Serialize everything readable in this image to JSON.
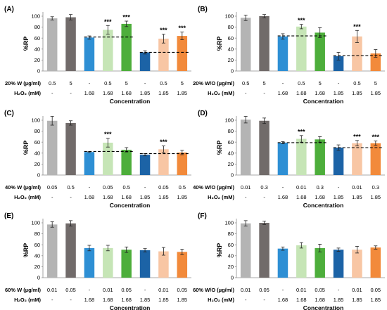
{
  "chart_data": [
    {
      "type": "bar",
      "panel_label": "(A)",
      "ylabel": "%RP",
      "xlabel": "Concentration",
      "ylim": [
        0,
        100
      ],
      "yticks": [
        "0",
        "20",
        "40",
        "60",
        "80",
        "100"
      ],
      "row1_label": "20% W (µg/ml)",
      "row2_label": "H₂O₂ (mM)",
      "row1": [
        "0.5",
        "5",
        "-",
        "0.5",
        "5",
        "-",
        "0.5",
        "5"
      ],
      "row2": [
        "-",
        "-",
        "1.68",
        "1.68",
        "1.68",
        "1.85",
        "1.85",
        "1.85"
      ],
      "values": [
        96,
        98,
        61,
        75,
        86,
        34,
        59,
        64
      ],
      "errors": [
        3,
        5,
        3,
        8,
        5,
        3,
        8,
        7
      ],
      "significance": [
        "",
        "",
        "",
        "***",
        "***",
        "",
        "***",
        "***"
      ],
      "reference_lines": [
        {
          "from": 2,
          "to": 4,
          "y": 62
        },
        {
          "from": 5,
          "to": 7,
          "y": 34
        }
      ],
      "colors": [
        "#b4b4b4",
        "#716b6a",
        "#2e8fd4",
        "#c6e5b6",
        "#4dae3b",
        "#1c63a6",
        "#f8c6a4",
        "#f28a3b"
      ]
    },
    {
      "type": "bar",
      "panel_label": "(B)",
      "ylabel": "%RP",
      "xlabel": "Concentration",
      "ylim": [
        0,
        100
      ],
      "yticks": [
        "0",
        "20",
        "40",
        "60",
        "80",
        "100"
      ],
      "row1_label": "20% W/O (µg/ml)",
      "row2_label": "H₂O₂ (mM)",
      "row1": [
        "0.5",
        "5",
        "-",
        "0.5",
        "5",
        "-",
        "0.5",
        "5"
      ],
      "row2": [
        "-",
        "-",
        "1.68",
        "1.68",
        "1.68",
        "1.85",
        "1.85",
        "1.85"
      ],
      "values": [
        97,
        100,
        63,
        81,
        70,
        27,
        63,
        32
      ],
      "errors": [
        5,
        3,
        5,
        4,
        9,
        7,
        11,
        7
      ],
      "significance": [
        "",
        "",
        "",
        "***",
        "",
        "",
        "***",
        ""
      ],
      "reference_lines": [
        {
          "from": 2,
          "to": 4,
          "y": 64
        },
        {
          "from": 5,
          "to": 7,
          "y": 28
        }
      ],
      "colors": [
        "#b4b4b4",
        "#716b6a",
        "#2e8fd4",
        "#c6e5b6",
        "#4dae3b",
        "#1c63a6",
        "#f8c6a4",
        "#f28a3b"
      ]
    },
    {
      "type": "bar",
      "panel_label": "(C)",
      "ylabel": "%RP",
      "xlabel": "Concentration",
      "ylim": [
        0,
        100
      ],
      "yticks": [
        "0",
        "20",
        "40",
        "60",
        "80",
        "100"
      ],
      "row1_label": "40% W (µg/ml)",
      "row2_label": "H₂O₂ (mM)",
      "row1": [
        "0.05",
        "0.5",
        "-",
        "0.05",
        "0.5",
        "-",
        "0.05",
        "0.5"
      ],
      "row2": [
        "-",
        "-",
        "1.68",
        "1.68",
        "1.68",
        "1.85",
        "1.85",
        "1.85"
      ],
      "values": [
        99,
        95,
        42,
        59,
        46,
        37,
        47,
        41
      ],
      "errors": [
        8,
        4,
        1,
        8,
        4,
        2,
        6,
        4
      ],
      "significance": [
        "",
        "",
        "",
        "***",
        "",
        "",
        "***",
        ""
      ],
      "reference_lines": [
        {
          "from": 2,
          "to": 4,
          "y": 43
        },
        {
          "from": 5,
          "to": 7,
          "y": 39
        }
      ],
      "colors": [
        "#b4b4b4",
        "#716b6a",
        "#2e8fd4",
        "#c6e5b6",
        "#4dae3b",
        "#1c63a6",
        "#f8c6a4",
        "#f28a3b"
      ]
    },
    {
      "type": "bar",
      "panel_label": "(D)",
      "ylabel": "%RP",
      "xlabel": "Concentration",
      "ylim": [
        0,
        100
      ],
      "yticks": [
        "0",
        "20",
        "40",
        "60",
        "80",
        "100"
      ],
      "row1_label": "40% W/O (µg/ml)",
      "row2_label": "H₂O₂ (mM)",
      "row1": [
        "0.01",
        "0.3",
        "-",
        "0.01",
        "0.3",
        "-",
        "0.01",
        "0.3"
      ],
      "row2": [
        "-",
        "-",
        "1.68",
        "1.68",
        "1.68",
        "1.85",
        "1.85",
        "1.85"
      ],
      "values": [
        101,
        99,
        59,
        66,
        65,
        50,
        58,
        58
      ],
      "errors": [
        6,
        5,
        2,
        6,
        5,
        5,
        5,
        4
      ],
      "significance": [
        "",
        "",
        "",
        "***",
        "",
        "",
        "***",
        "***"
      ],
      "reference_lines": [
        {
          "from": 2,
          "to": 4,
          "y": 59
        },
        {
          "from": 5,
          "to": 7,
          "y": 50
        }
      ],
      "colors": [
        "#b4b4b4",
        "#716b6a",
        "#2e8fd4",
        "#c6e5b6",
        "#4dae3b",
        "#1c63a6",
        "#f8c6a4",
        "#f28a3b"
      ]
    },
    {
      "type": "bar",
      "panel_label": "(E)",
      "ylabel": "%RP",
      "xlabel": "Concentration",
      "ylim": [
        0,
        100
      ],
      "yticks": [
        "0",
        "20",
        "40",
        "60",
        "80",
        "100"
      ],
      "row1_label": "60% W (µg/ml)",
      "row2_label": "H₂O₂ (mM)",
      "row1": [
        "0.01",
        "0.05",
        "-",
        "0.01",
        "0.05",
        "-",
        "0.01",
        "0.05"
      ],
      "row2": [
        "-",
        "-",
        "1.68",
        "1.68",
        "1.68",
        "1.85",
        "1.85",
        "1.85"
      ],
      "values": [
        97,
        99,
        54,
        54,
        51,
        50,
        48,
        47
      ],
      "errors": [
        5,
        5,
        5,
        5,
        5,
        3,
        7,
        5
      ],
      "significance": [
        "",
        "",
        "",
        "",
        "",
        "",
        "",
        ""
      ],
      "reference_lines": [],
      "colors": [
        "#b4b4b4",
        "#716b6a",
        "#2e8fd4",
        "#c6e5b6",
        "#4dae3b",
        "#1c63a6",
        "#f8c6a4",
        "#f28a3b"
      ]
    },
    {
      "type": "bar",
      "panel_label": "(F)",
      "ylabel": "%RP",
      "xlabel": "Concentration",
      "ylim": [
        0,
        100
      ],
      "yticks": [
        "0",
        "20",
        "40",
        "60",
        "80",
        "100"
      ],
      "row1_label": "60% W/O (µg/ml)",
      "row2_label": "H₂O₂ (mM)",
      "row1": [
        "0.01",
        "0.05",
        "-",
        "0.01",
        "0.05",
        "-",
        "0.01",
        "0.05"
      ],
      "row2": [
        "-",
        "-",
        "1.68",
        "1.68",
        "1.68",
        "1.85",
        "1.85",
        "1.85"
      ],
      "values": [
        99,
        100,
        53,
        59,
        54,
        51,
        51,
        55
      ],
      "errors": [
        5,
        3,
        3,
        5,
        7,
        3,
        6,
        3
      ],
      "significance": [
        "",
        "",
        "",
        "",
        "",
        "",
        "",
        ""
      ],
      "reference_lines": [],
      "colors": [
        "#b4b4b4",
        "#716b6a",
        "#2e8fd4",
        "#c6e5b6",
        "#4dae3b",
        "#1c63a6",
        "#f8c6a4",
        "#f28a3b"
      ]
    }
  ]
}
